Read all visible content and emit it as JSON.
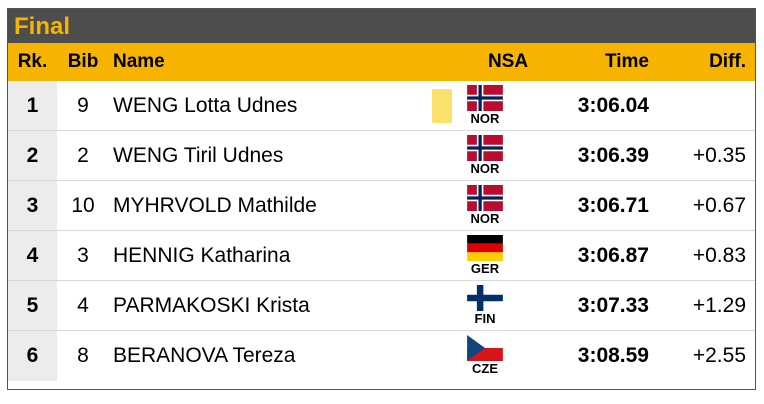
{
  "title": "Final",
  "headers": {
    "rk": "Rk.",
    "bib": "Bib",
    "name": "Name",
    "nsa": "NSA",
    "time": "Time",
    "diff": "Diff."
  },
  "rows": [
    {
      "rk": "1",
      "bib": "9",
      "name": "WENG Lotta Udnes",
      "nsa": "NOR",
      "time": "3:06.04",
      "diff": "",
      "yellow_bib": true
    },
    {
      "rk": "2",
      "bib": "2",
      "name": "WENG Tiril Udnes",
      "nsa": "NOR",
      "time": "3:06.39",
      "diff": "+0.35"
    },
    {
      "rk": "3",
      "bib": "10",
      "name": "MYHRVOLD Mathilde",
      "nsa": "NOR",
      "time": "3:06.71",
      "diff": "+0.67"
    },
    {
      "rk": "4",
      "bib": "3",
      "name": "HENNIG Katharina",
      "nsa": "GER",
      "time": "3:06.87",
      "diff": "+0.83"
    },
    {
      "rk": "5",
      "bib": "4",
      "name": "PARMAKOSKI Krista",
      "nsa": "FIN",
      "time": "3:07.33",
      "diff": "+1.29"
    },
    {
      "rk": "6",
      "bib": "8",
      "name": "BERANOVA Tereza",
      "nsa": "CZE",
      "time": "3:08.59",
      "diff": "+2.55"
    }
  ],
  "colors": {
    "title_bg": "#4d4d4d",
    "accent": "#f6b400",
    "rank_bg": "#ececec",
    "leader_bib": "#fbe16b"
  }
}
